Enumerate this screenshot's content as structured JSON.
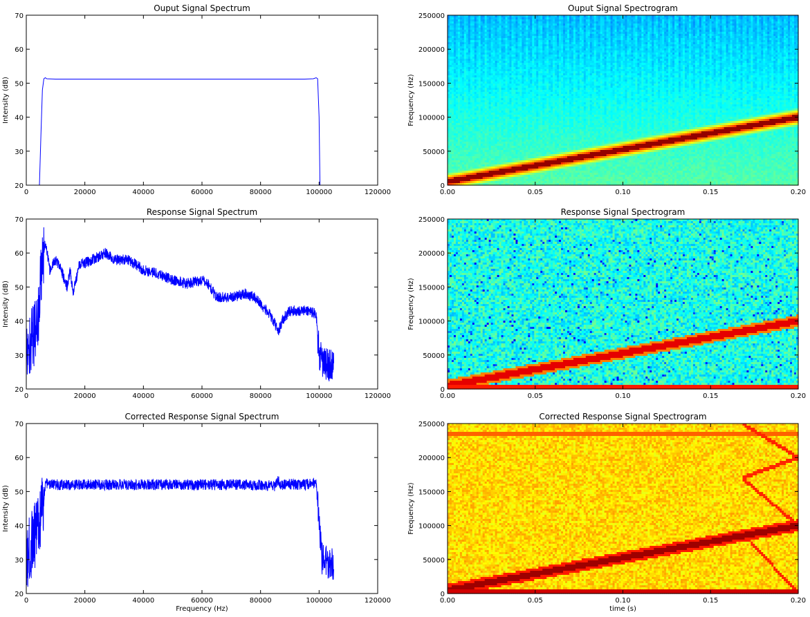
{
  "chart_data": [
    {
      "type": "line",
      "title": "Ouput Signal Spectrum",
      "xlabel": "",
      "ylabel": "Intensity (dB)",
      "xlim": [
        0,
        120000
      ],
      "ylim": [
        20,
        70
      ],
      "xticks": [
        "0",
        "20000",
        "40000",
        "60000",
        "80000",
        "100000",
        "120000"
      ],
      "yticks": [
        "20",
        "30",
        "40",
        "50",
        "60",
        "70"
      ],
      "color": "#0000ff",
      "series": [
        {
          "x": [
            4500,
            5000,
            5500,
            6000,
            6500,
            7000,
            10000,
            20000,
            40000,
            60000,
            80000,
            95000,
            98000,
            99000,
            99500,
            100000,
            100300
          ],
          "y": [
            20,
            35,
            48,
            51.3,
            51.6,
            51.3,
            51.2,
            51.2,
            51.2,
            51.2,
            51.2,
            51.2,
            51.3,
            51.6,
            51.3,
            40,
            20
          ]
        }
      ]
    },
    {
      "type": "heatmap",
      "title": "Ouput Signal Spectrogram",
      "xlabel": "",
      "ylabel": "Frequency (Hz)",
      "xlim": [
        0,
        0.2
      ],
      "ylim": [
        0,
        250000
      ],
      "xticks": [
        "0.00",
        "0.05",
        "0.10",
        "0.15",
        "0.20"
      ],
      "yticks": [
        "0",
        "50000",
        "100000",
        "150000",
        "200000",
        "250000"
      ],
      "sweep": {
        "start_hz": 5000,
        "end_hz": 100000
      },
      "colormap": "jet"
    },
    {
      "type": "line",
      "title": "Response Signal Spectrum",
      "xlabel": "",
      "ylabel": "Intensity (dB)",
      "xlim": [
        0,
        120000
      ],
      "ylim": [
        20,
        70
      ],
      "xticks": [
        "0",
        "20000",
        "40000",
        "60000",
        "80000",
        "100000",
        "120000"
      ],
      "yticks": [
        "20",
        "30",
        "40",
        "50",
        "60",
        "70"
      ],
      "color": "#0000ff",
      "noise_range": [
        0,
        105000
      ],
      "series": [
        {
          "x": [
            0,
            2000,
            4000,
            5500,
            6500,
            7500,
            8000,
            10000,
            12000,
            13000,
            14000,
            15000,
            16000,
            17000,
            18000,
            20000,
            25000,
            27000,
            30000,
            35000,
            40000,
            45000,
            50000,
            55000,
            60000,
            62000,
            65000,
            70000,
            75000,
            78000,
            80000,
            83000,
            85000,
            86000,
            88000,
            90000,
            93000,
            97000,
            99000,
            100000,
            101000,
            103000,
            105000
          ],
          "y": [
            30,
            35,
            40,
            58,
            63,
            58,
            55,
            58,
            55,
            52,
            50,
            55,
            48,
            52,
            57,
            57,
            59,
            60,
            58,
            58,
            55,
            54,
            52,
            51,
            52,
            51,
            47,
            47,
            48,
            47,
            45,
            42,
            39,
            37,
            41,
            43,
            43,
            43,
            42,
            30,
            28,
            27,
            27
          ]
        }
      ]
    },
    {
      "type": "heatmap",
      "title": "Response Signal Spectrogram",
      "xlabel": "",
      "ylabel": "Frequency (Hz)",
      "xlim": [
        0,
        0.2
      ],
      "ylim": [
        0,
        250000
      ],
      "xticks": [
        "0.00",
        "0.05",
        "0.10",
        "0.15",
        "0.20"
      ],
      "yticks": [
        "0",
        "50000",
        "100000",
        "150000",
        "200000",
        "250000"
      ],
      "sweep": {
        "start_hz": 5000,
        "end_hz": 100000
      },
      "colormap": "jet"
    },
    {
      "type": "line",
      "title": "Corrected Response Signal Spectrum",
      "xlabel": "Frequency (Hz)",
      "ylabel": "Intensity (dB)",
      "xlim": [
        0,
        120000
      ],
      "ylim": [
        20,
        70
      ],
      "xticks": [
        "0",
        "20000",
        "40000",
        "60000",
        "80000",
        "100000",
        "120000"
      ],
      "yticks": [
        "20",
        "30",
        "40",
        "50",
        "60",
        "70"
      ],
      "color": "#0000ff",
      "noise_range": [
        0,
        105000
      ],
      "series": [
        {
          "x": [
            0,
            2000,
            4000,
            5500,
            6500,
            7000,
            10000,
            20000,
            40000,
            60000,
            80000,
            85000,
            86000,
            87000,
            90000,
            95000,
            98000,
            99000,
            100000,
            101000,
            103000,
            105000
          ],
          "y": [
            30,
            35,
            40,
            45,
            52,
            52.5,
            52,
            52,
            52,
            52,
            52,
            51.5,
            53.5,
            52,
            52,
            52,
            52.5,
            52,
            40,
            30,
            29,
            29
          ]
        }
      ]
    },
    {
      "type": "heatmap",
      "title": "Corrected Response Signal Spectrogram",
      "xlabel": "time (s)",
      "ylabel": "Frequency (Hz)",
      "xlim": [
        0,
        0.2
      ],
      "ylim": [
        0,
        250000
      ],
      "xticks": [
        "0.00",
        "0.05",
        "0.10",
        "0.15",
        "0.20"
      ],
      "yticks": [
        "0",
        "50000",
        "100000",
        "150000",
        "200000",
        "250000"
      ],
      "sweep": {
        "start_hz": 5000,
        "end_hz": 100000
      },
      "aliases": [
        {
          "t0": 0.168,
          "f0": 250000,
          "t1": 0.2,
          "f1": 200000
        },
        {
          "t0": 0.168,
          "f0": 170000,
          "t1": 0.2,
          "f1": 200000
        },
        {
          "t0": 0.168,
          "f0": 170000,
          "t1": 0.2,
          "f1": 100000
        },
        {
          "t0": 0.168,
          "f0": 90000,
          "t1": 0.2,
          "f1": 0
        }
      ],
      "colormap": "jet"
    }
  ]
}
